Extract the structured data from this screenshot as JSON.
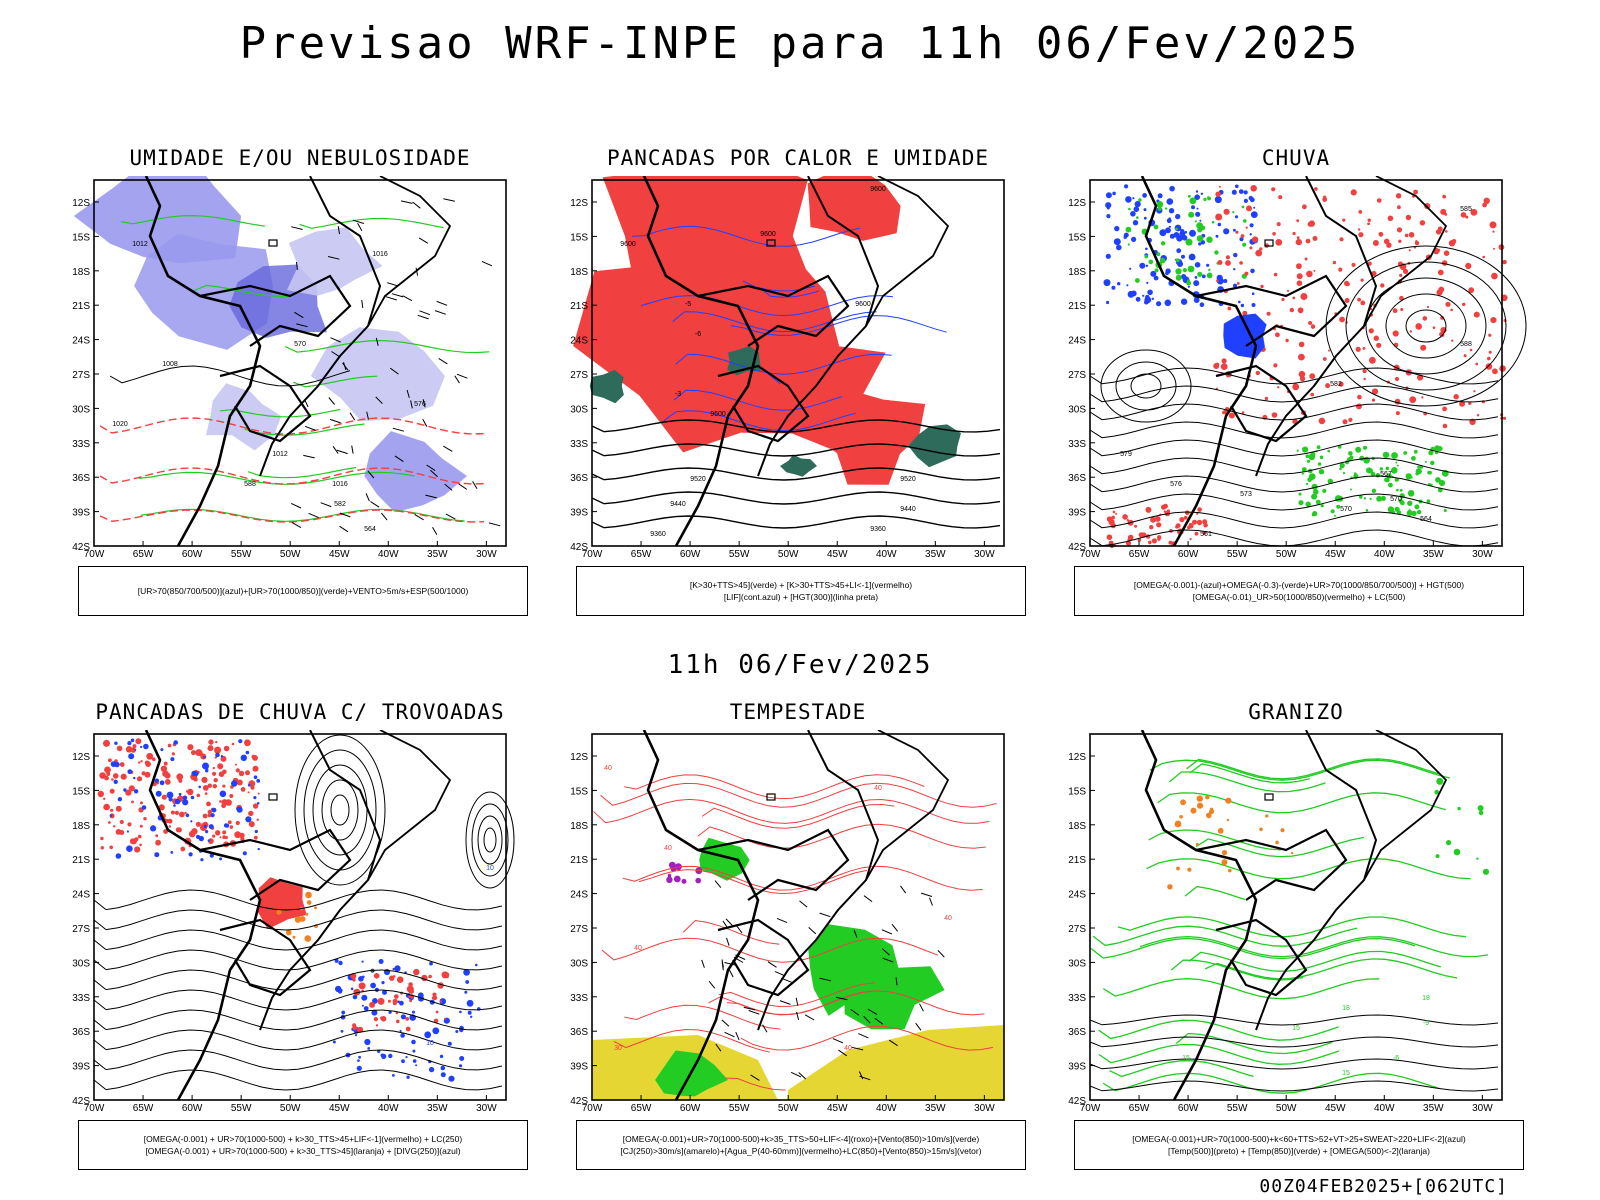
{
  "header": {
    "title": "Previsao WRF-INPE  para 11h 06/Fev/2025"
  },
  "mid_date": "11h 06/Fev/2025",
  "footer": "00Z04FEB2025+[062UTC]",
  "axes": {
    "lat_labels": [
      "12S",
      "15S",
      "18S",
      "21S",
      "24S",
      "27S",
      "30S",
      "33S",
      "36S",
      "39S",
      "42S"
    ],
    "lon_labels": [
      "70W",
      "65W",
      "60W",
      "55W",
      "50W",
      "45W",
      "40W",
      "35W",
      "30W"
    ]
  },
  "colors": {
    "red": "#f04040",
    "blue": "#2040ff",
    "lavender": "#9999ee",
    "green": "#22cc22",
    "darkgreen": "#2f6b5a",
    "yellow": "#e6d633",
    "purple": "#a020c0",
    "orange": "#f08020"
  },
  "panels": [
    {
      "id": "umidade",
      "title": "UMIDADE E/OU NEBULOSIDADE",
      "legend": [
        "[UR>70(850/700/500)](azul)+[UR>70(1000/850)](verde)+VENTO>5m/s+ESP(500/1000)"
      ],
      "contour_labels": [
        "1012",
        "1016",
        "1008",
        "1020",
        "1012",
        "1016",
        "570",
        "576",
        "582",
        "588",
        "564"
      ]
    },
    {
      "id": "pancadas",
      "title": "PANCADAS POR CALOR E UMIDADE",
      "legend": [
        "[K>30+TTS>45](verde) + [K>30+TTS>45+LI<-1](vermelho)",
        "[LIF](cont.azul) + [HGT(300)](linha preta)"
      ],
      "contour_labels": [
        "9600",
        "9600",
        "9600",
        "9600",
        "9600",
        "9520",
        "9520",
        "9440",
        "9440",
        "9360",
        "9360",
        "-5",
        "-6",
        "-3"
      ]
    },
    {
      "id": "chuva",
      "title": "CHUVA",
      "legend": [
        "[OMEGA(-0.001)-(azul)+OMEGA(-0.3)-(verde)+UR>70(1000/850/700/500)] + HGT(500)",
        "[OMEGA(-0.01)_UR>50(1000/850)(vermelho) + LC(500)"
      ],
      "contour_labels": [
        "588",
        "585",
        "582",
        "579",
        "576",
        "573",
        "570",
        "567",
        "564",
        "561",
        "570"
      ]
    },
    {
      "id": "trovoadas",
      "title": "PANCADAS DE CHUVA C/ TROVOADAS",
      "legend": [
        "[OMEGA(-0.001) + UR>70(1000-500) + k>30_TTS>45+LIF<-1](vermelho) + LC(250)",
        "[OMEGA(-0.001) + UR>70(1000-500) + k>30_TTS>45](laranja) + [DIVG(250)](azul)"
      ],
      "contour_labels": [
        "10",
        "10"
      ]
    },
    {
      "id": "tempestade",
      "title": "TEMPESTADE",
      "legend": [
        "[OMEGA(-0.001)+UR>70(1000-500)+k>35_TTS>50+LIF<-4](roxo)+[Vento(850)>10m/s](verde)",
        "[CJ(250)>30m/s](amarelo)+[Agua_P(40-60mm)](vermelho)+LC(850)+[Vento(850)>15m/s](vetor)"
      ],
      "contour_labels": [
        "40",
        "40",
        "40",
        "40",
        "40",
        "30",
        "40"
      ]
    },
    {
      "id": "granizo",
      "title": "GRANIZO",
      "legend": [
        "[OMEGA(-0.001)+UR>70(1000-500)+k<60+TTS>52+VT>25+SWEAT>220+LIF<-2](azul)",
        "[Temp(500)](preto) + [Temp(850)](verde) + [OMEGA(500)<-2](laranja)"
      ],
      "contour_labels": [
        "15",
        "15",
        "15",
        "18",
        "18",
        "-9",
        "-6"
      ]
    }
  ]
}
